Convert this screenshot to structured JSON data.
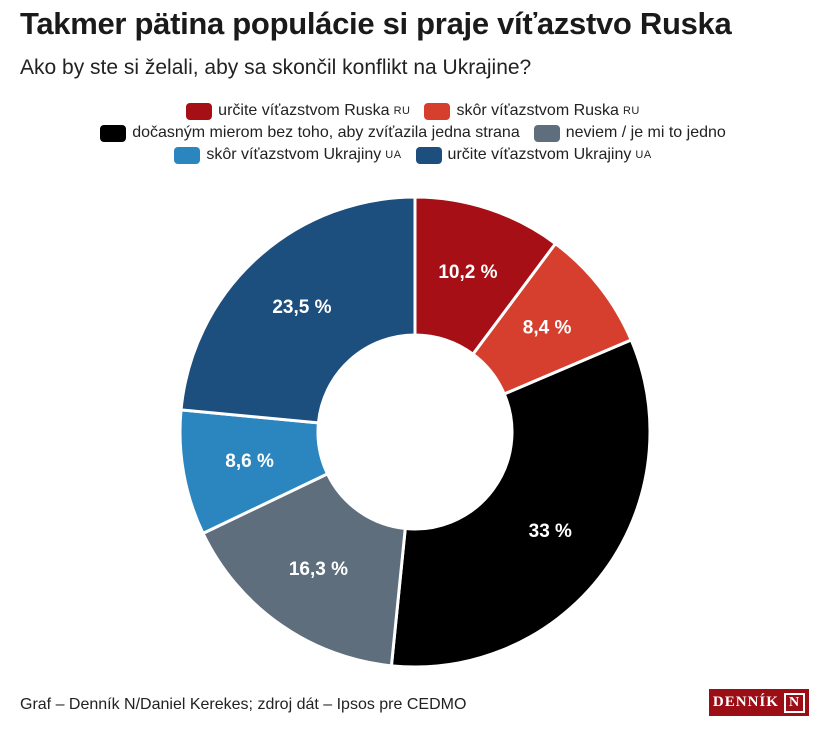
{
  "header": {
    "title": "Takmer pätina populácie si praje víťazstvo Ruska",
    "subtitle": "Ako by ste si želali, aby sa skončil konflikt na Ukrajine?"
  },
  "legend": [
    {
      "label": "určite víťazstvom Ruska",
      "code": "RU",
      "color": "#a50f15"
    },
    {
      "label": "skôr víťazstvom Ruska",
      "code": "RU",
      "color": "#d63f2e"
    },
    {
      "label": "dočasným mierom bez toho, aby zvíťazila jedna strana",
      "code": "",
      "color": "#000000"
    },
    {
      "label": "neviem / je mi to jedno",
      "code": "",
      "color": "#5e6e7c"
    },
    {
      "label": "skôr víťazstvom Ukrajiny",
      "code": "UA",
      "color": "#2b86c0"
    },
    {
      "label": "určite víťazstvom Ukrajiny",
      "code": "UA",
      "color": "#1c4e7e"
    }
  ],
  "chart_data": {
    "type": "pie",
    "variant": "donut",
    "categories": [
      "určite víťazstvom Ruska",
      "skôr víťazstvom Ruska",
      "dočasným mierom bez toho, aby zvíťazila jedna strana",
      "neviem / je mi to jedno",
      "skôr víťazstvom Ukrajiny",
      "určite víťazstvom Ukrajiny"
    ],
    "values": [
      10.2,
      8.4,
      33,
      16.3,
      8.6,
      23.5
    ],
    "labels": [
      "10,2 %",
      "8,4 %",
      "33 %",
      "16,3 %",
      "8,6 %",
      "23,5 %"
    ],
    "colors": [
      "#a50f15",
      "#d63f2e",
      "#000000",
      "#5e6e7c",
      "#2b86c0",
      "#1c4e7e"
    ],
    "legend_position": "top"
  },
  "footer": {
    "source": "Graf – Denník N/Daniel Kerekes; zdroj dát – Ipsos pre CEDMO",
    "logo_text": "DENNÍK",
    "logo_mark": "N"
  }
}
